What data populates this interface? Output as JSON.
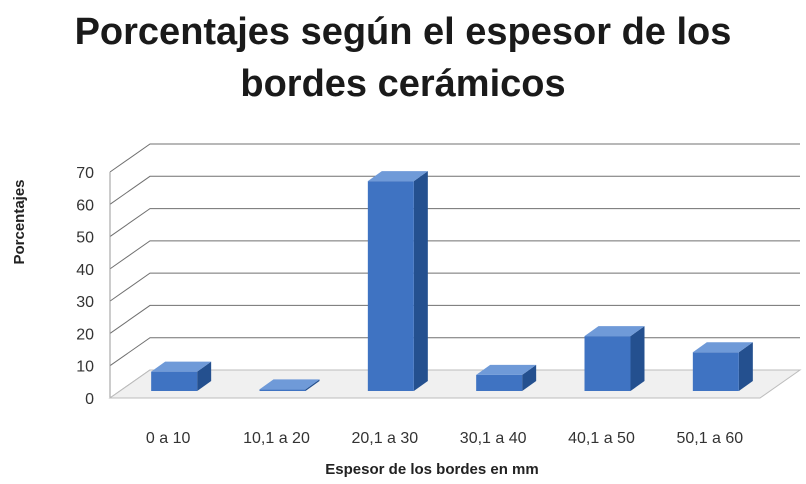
{
  "chart_data": {
    "type": "bar",
    "title_line1": "Porcentajes según el espesor de los",
    "title_line2": "bordes cerámicos",
    "xlabel": "Espesor de los bordes en mm",
    "ylabel": "Porcentajes",
    "categories": [
      "0 a 10",
      "10,1 a 20",
      "20,1 a 30",
      "30,1 a 40",
      "40,1 a 50",
      "50,1 a 60"
    ],
    "values": [
      6,
      0.5,
      65,
      5,
      17,
      12
    ],
    "yticks": [
      "0",
      "10",
      "20",
      "30",
      "40",
      "50",
      "60",
      "70"
    ],
    "ylim": [
      0,
      70
    ],
    "grid": true,
    "legend": "none",
    "colors": {
      "bar_front": "#3f73c2",
      "bar_side": "#24508f",
      "bar_top": "#6f9ad8",
      "grid": "#707070",
      "floor": "#f0f0f0"
    }
  }
}
